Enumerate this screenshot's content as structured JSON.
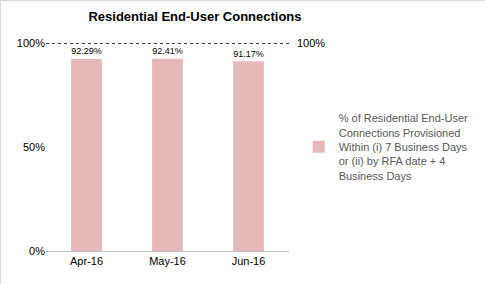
{
  "chart_data": {
    "type": "bar",
    "title": "Residential End-User Connections",
    "categories": [
      "Apr-16",
      "May-16",
      "Jun-16"
    ],
    "series": [
      {
        "name": "% of Residential End-User Connections Provisioned Within (i) 7 Business Days or (ii) by RFA date + 4 Business Days",
        "color": "#e6b9b8",
        "values": [
          92.29,
          92.41,
          91.17
        ],
        "value_labels": [
          "92.29%",
          "92.41%",
          "91.17%"
        ]
      }
    ],
    "ylim": [
      0,
      100
    ],
    "yticks": [
      {
        "value": 0,
        "label": "0%"
      },
      {
        "value": 50,
        "label": "50%"
      },
      {
        "value": 100,
        "label": "100%"
      }
    ],
    "grid": false,
    "data_labels": true,
    "legend": "right",
    "reference_line": {
      "value": 100,
      "label": "100%",
      "line_style": "dot"
    }
  }
}
